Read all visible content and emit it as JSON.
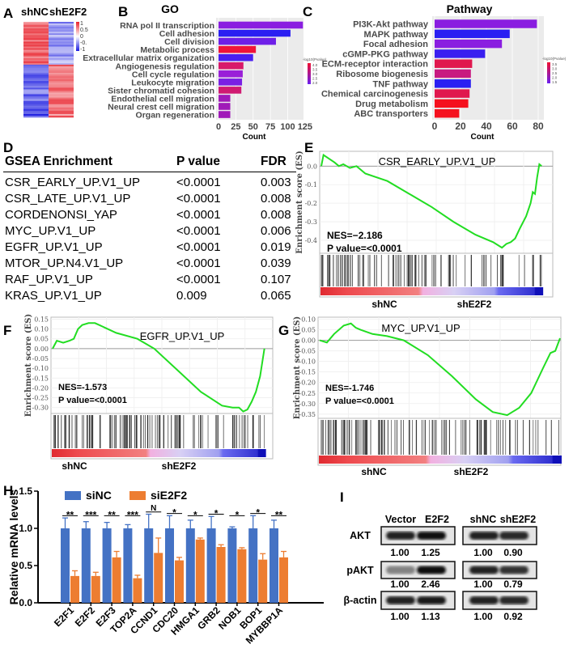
{
  "panel_letters": [
    "A",
    "B",
    "C",
    "D",
    "E",
    "F",
    "G",
    "H",
    "I"
  ],
  "chart_data": [
    {
      "panel": "A",
      "type": "heatmap",
      "columns": [
        "shNC",
        "shE2F2"
      ],
      "legend_ticks": [
        "1",
        "0.5",
        "0",
        "-0.",
        "-1"
      ],
      "colors": {
        "high": "#e8202a",
        "mid": "#ffffff",
        "low": "#1a1ae0"
      }
    },
    {
      "panel": "B",
      "type": "bar",
      "orientation": "horizontal",
      "title": "GO",
      "xlabel": "Count",
      "categories": [
        "RNA pol II transcription",
        "Cell adhesion",
        "Cell division",
        "Metabolic process",
        "Extracellular matrix organization",
        "Angiogenesis regulation",
        "Cell cycle regulation",
        "Leukocyte migration",
        "Sister chromatid cohesion",
        "Endothelial cell migration",
        "Neural crest cell migration",
        "Organ regeneration"
      ],
      "values": [
        122,
        104,
        83,
        54,
        50,
        36,
        35,
        34,
        33,
        17,
        17,
        17
      ],
      "bar_colors": [
        "#8a1ee0",
        "#2a1ff2",
        "#6e1fe8",
        "#f0143a",
        "#4a1ff0",
        "#d81a6a",
        "#9a1fd8",
        "#7a1fe4",
        "#d01a72",
        "#a01ab8",
        "#a01ab8",
        "#a01ab8"
      ],
      "xticks": [
        "0",
        "25",
        "50",
        "75",
        "100",
        "125"
      ],
      "xlim": [
        0,
        130
      ],
      "legend": {
        "title": "-log10(Pvalue)",
        "ticks": [
          "4.0",
          "3.5",
          "3.0",
          "2.5",
          "2.0"
        ]
      }
    },
    {
      "panel": "C",
      "type": "bar",
      "orientation": "horizontal",
      "title": "Pathway",
      "xlabel": "Count",
      "categories": [
        "PI3K-Akt pathway",
        "MAPK pathway",
        "Focal adhesion",
        "cGMP-PKG pathway",
        "ECM-receptor interaction",
        "Ribosome biogenesis",
        "TNF pathway",
        "Chemical carcinogenesis",
        "Drug metabolism",
        "ABC transporters"
      ],
      "values": [
        79,
        58,
        52,
        39,
        29,
        28,
        28,
        27,
        26,
        19
      ],
      "bar_colors": [
        "#8a1ee0",
        "#2a1ff2",
        "#8a1ee0",
        "#3a1ff0",
        "#e0184e",
        "#c81a80",
        "#2a1ff2",
        "#e0184e",
        "#f5101e",
        "#f5101e"
      ],
      "xticks": [
        "0",
        "20",
        "40",
        "60",
        "80"
      ],
      "xlim": [
        0,
        87
      ],
      "legend": {
        "title": "-log10(Pvalue)",
        "ticks": [
          "3.5",
          "3.0",
          "2.5",
          "2.0",
          "1.5"
        ]
      }
    },
    {
      "panel": "D",
      "type": "table",
      "headers": [
        "GSEA Enrichment",
        "P value",
        "FDR"
      ],
      "rows": [
        [
          "CSR_EARLY_UP.V1_UP",
          "<0.0001",
          "0.003"
        ],
        [
          "CSR_LATE_UP.V1_UP",
          "<0.0001",
          "0.008"
        ],
        [
          "CORDENONSI_YAP",
          "<0.0001",
          "0.008"
        ],
        [
          "MYC_UP.V1_UP",
          "<0.0001",
          "0.006"
        ],
        [
          "EGFR_UP.V1_UP",
          "<0.0001",
          "0.019"
        ],
        [
          "MTOR_UP.N4.V1_UP",
          "<0.0001",
          "0.039"
        ],
        [
          "RAF_UP.V1_UP",
          "<0.0001",
          "0.107"
        ],
        [
          "KRAS_UP.V1_UP",
          "0.009",
          "0.065"
        ]
      ]
    },
    {
      "panel": "E",
      "type": "line",
      "title": "CSR_EARLY_UP.V1_UP",
      "ylabel": "Enrichment score (ES)",
      "nes": "NES=−2.186",
      "pvalue": "P value=<0.0001",
      "groups": [
        "shNC",
        "shE2F2"
      ],
      "yticks": [
        "0.0",
        "-0.1",
        "-0.2",
        "-0.3",
        "-0.4"
      ],
      "ylim": [
        -0.47,
        0.08
      ],
      "line_color": "#22dd22",
      "x": [
        0,
        0.01,
        0.06,
        0.08,
        0.1,
        0.13,
        0.16,
        0.2,
        0.3,
        0.4,
        0.5,
        0.6,
        0.7,
        0.78,
        0.82,
        0.84,
        0.86,
        0.88,
        0.9,
        0.93,
        0.95,
        0.96,
        0.97,
        0.98,
        0.99,
        1
      ],
      "y": [
        0,
        0.06,
        0.02,
        0.0,
        0.01,
        -0.01,
        0.0,
        -0.04,
        -0.08,
        -0.15,
        -0.22,
        -0.3,
        -0.37,
        -0.41,
        -0.44,
        -0.42,
        -0.41,
        -0.39,
        -0.34,
        -0.27,
        -0.2,
        -0.14,
        -0.15,
        -0.06,
        0.01,
        0.0
      ]
    },
    {
      "panel": "F",
      "type": "line",
      "title": "EGFR_UP.V1_UP",
      "ylabel": "Enrichment score (ES)",
      "nes": "NES=-1.573",
      "pvalue": "P value=<0.0001",
      "groups": [
        "shNC",
        "shE2F2"
      ],
      "yticks": [
        "0.15",
        "0.10",
        "0.05",
        "0.00",
        "-0.05",
        "-0.10",
        "-0.15",
        "-0.20",
        "-0.25",
        "-0.30"
      ],
      "ylim": [
        -0.33,
        0.16
      ],
      "line_color": "#22dd22",
      "x": [
        0,
        0.02,
        0.05,
        0.08,
        0.1,
        0.12,
        0.14,
        0.17,
        0.2,
        0.22,
        0.3,
        0.4,
        0.48,
        0.6,
        0.7,
        0.8,
        0.85,
        0.88,
        0.9,
        0.92,
        0.94,
        0.96,
        0.98,
        1
      ],
      "y": [
        0,
        0.04,
        0.03,
        0.04,
        0.05,
        0.1,
        0.12,
        0.13,
        0.13,
        0.12,
        0.08,
        0.05,
        0.0,
        -0.12,
        -0.22,
        -0.29,
        -0.3,
        -0.3,
        -0.32,
        -0.31,
        -0.27,
        -0.22,
        -0.14,
        0.0
      ]
    },
    {
      "panel": "G",
      "type": "line",
      "title": "MYC_UP.V1_UP",
      "ylabel": "Enrichment score (ES)",
      "nes": "NES=-1.746",
      "pvalue": "P value=<0.0001",
      "groups": [
        "shNC",
        "shE2F2"
      ],
      "yticks": [
        "0.10",
        "0.05",
        "0.00",
        "-0.05",
        "-0.10",
        "-0.15",
        "-0.20",
        "-0.25",
        "-0.30",
        "-0.35"
      ],
      "ylim": [
        -0.37,
        0.11
      ],
      "line_color": "#22dd22",
      "x": [
        0,
        0.03,
        0.06,
        0.1,
        0.13,
        0.15,
        0.17,
        0.22,
        0.28,
        0.35,
        0.45,
        0.55,
        0.65,
        0.72,
        0.78,
        0.83,
        0.88,
        0.93,
        0.96,
        0.98,
        1
      ],
      "y": [
        0,
        -0.01,
        0.03,
        0.07,
        0.08,
        0.06,
        0.05,
        0.03,
        0.02,
        0.0,
        -0.07,
        -0.17,
        -0.28,
        -0.34,
        -0.355,
        -0.32,
        -0.25,
        -0.13,
        -0.06,
        -0.05,
        0.01
      ]
    },
    {
      "panel": "H",
      "type": "bar",
      "ylabel": "Relative mRNA  levels",
      "categories": [
        "E2F1",
        "E2F2",
        "E2F3",
        "TOP2A",
        "CCND1",
        "CDC20",
        "HMGA1",
        "GRB2",
        "NOB1",
        "BOP1",
        "MYBBP1A"
      ],
      "series": [
        {
          "name": "siNC",
          "color": "#4472c4",
          "values": [
            1,
            1,
            1,
            1,
            1,
            1,
            1,
            1,
            1,
            1,
            1
          ],
          "errors": [
            0.14,
            0.09,
            0.08,
            0.05,
            0.19,
            0.17,
            0.11,
            0.16,
            0.02,
            0.17,
            0.11
          ]
        },
        {
          "name": "siE2F2",
          "color": "#ed7d31",
          "values": [
            0.36,
            0.36,
            0.61,
            0.33,
            0.67,
            0.57,
            0.85,
            0.75,
            0.72,
            0.58,
            0.61
          ],
          "errors": [
            0.07,
            0.05,
            0.08,
            0.04,
            0.2,
            0.04,
            0.02,
            0.03,
            0.02,
            0.08,
            0.08
          ]
        }
      ],
      "significance": [
        "**",
        "***",
        "**",
        "***",
        "N",
        "*",
        "*",
        "*",
        "*",
        "*",
        "**"
      ],
      "yticks": [
        "0.0",
        "0.5",
        "1.0",
        "1.5"
      ],
      "ylim": [
        0,
        1.5
      ]
    }
  ],
  "western_blot": {
    "panel": "I",
    "left_lanes": [
      "Vector",
      "E2F2"
    ],
    "right_lanes": [
      "shNC",
      "shE2F2"
    ],
    "rows": [
      {
        "label": "AKT",
        "left": [
          "1.00",
          "1.25"
        ],
        "right": [
          "1.00",
          "0.90"
        ]
      },
      {
        "label": "pAKT",
        "left": [
          "1.00",
          "2.46"
        ],
        "right": [
          "1.00",
          "0.79"
        ]
      },
      {
        "label": "β-actin",
        "left": [
          "1.00",
          "1.13"
        ],
        "right": [
          "1.00",
          "0.92"
        ]
      }
    ]
  }
}
